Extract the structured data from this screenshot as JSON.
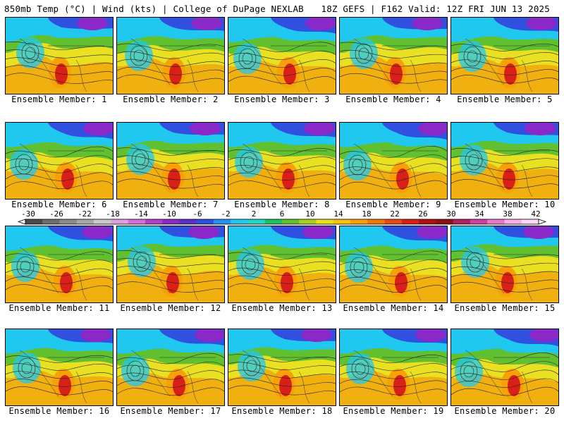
{
  "header": {
    "left": "850mb Temp (°C) | Wind (kts) | College of DuPage NEXLAB",
    "right": "18Z GEFS | F162 Valid: 12Z FRI JUN 13 2025"
  },
  "members": [
    "Ensemble Member: 1",
    "Ensemble Member: 2",
    "Ensemble Member: 3",
    "Ensemble Member: 4",
    "Ensemble Member: 5",
    "Ensemble Member: 6",
    "Ensemble Member: 7",
    "Ensemble Member: 8",
    "Ensemble Member: 9",
    "Ensemble Member: 10",
    "Ensemble Member: 11",
    "Ensemble Member: 12",
    "Ensemble Member: 13",
    "Ensemble Member: 14",
    "Ensemble Member: 15",
    "Ensemble Member: 16",
    "Ensemble Member: 17",
    "Ensemble Member: 18",
    "Ensemble Member: 19",
    "Ensemble Member: 20"
  ],
  "colorbar": {
    "ticks": [
      "-30",
      "-26",
      "-22",
      "-18",
      "-14",
      "-10",
      "-6",
      "-2",
      "2",
      "6",
      "10",
      "14",
      "18",
      "22",
      "26",
      "30",
      "34",
      "38",
      "42"
    ],
    "colors": [
      "#4a4a4a",
      "#6e6e6e",
      "#8c8c8c",
      "#a8a8a8",
      "#c8c8c8",
      "#e0a0e0",
      "#d070d8",
      "#b040c8",
      "#8a28c8",
      "#5a30c8",
      "#3050e0",
      "#2890f0",
      "#20c8f0",
      "#20d8c0",
      "#20c060",
      "#60c030",
      "#a8d020",
      "#e8e020",
      "#f8c010",
      "#f8a008",
      "#f07808",
      "#e84818",
      "#d82018",
      "#b01010",
      "#901018",
      "#b02060",
      "#d040a0",
      "#e878c8",
      "#f8b0e8",
      "#ffd8f8"
    ]
  },
  "map_colors": {
    "hot": "#d82018",
    "warm": "#f8a008",
    "mild": "#e8e020",
    "cool": "#60c030",
    "cold": "#20c8f0",
    "colder": "#3050e0",
    "arctic": "#8a28c8",
    "ocean": "#f0b010"
  }
}
